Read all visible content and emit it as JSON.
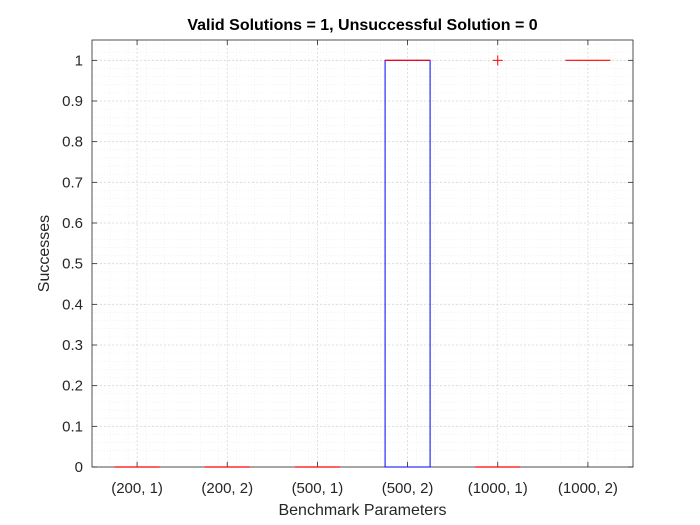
{
  "chart_data": {
    "type": "box",
    "title": "Valid Solutions = 1, Unsuccessful Solution = 0",
    "xlabel": "Benchmark Parameters",
    "ylabel": "Successes",
    "categories": [
      "(200, 1)",
      "(200, 2)",
      "(500, 1)",
      "(500, 2)",
      "(1000, 1)",
      "(1000, 2)"
    ],
    "ylim": [
      0,
      1.05
    ],
    "yticks": [
      "0",
      "0.1",
      "0.2",
      "0.3",
      "0.4",
      "0.5",
      "0.6",
      "0.7",
      "0.8",
      "0.9",
      "1"
    ],
    "grid": true,
    "minor_grid": true,
    "boxes": [
      {
        "category": "(200, 1)",
        "q1": 0,
        "median": 0,
        "q3": 0,
        "outliers": []
      },
      {
        "category": "(200, 2)",
        "q1": 0,
        "median": 0,
        "q3": 0,
        "outliers": []
      },
      {
        "category": "(500, 1)",
        "q1": 0,
        "median": 0,
        "q3": 0,
        "outliers": []
      },
      {
        "category": "(500, 2)",
        "q1": 0,
        "median": 1,
        "q3": 1,
        "outliers": []
      },
      {
        "category": "(1000, 1)",
        "q1": 0,
        "median": 0,
        "q3": 0,
        "outliers": [
          1
        ]
      },
      {
        "category": "(1000, 2)",
        "q1": 1,
        "median": 1,
        "q3": 1,
        "outliers": []
      }
    ],
    "colors": {
      "box": "#0000ff",
      "median": "#ff0000",
      "outlier": "#ff0000",
      "grid": "#d9d9d9",
      "axis": "#262626"
    }
  }
}
